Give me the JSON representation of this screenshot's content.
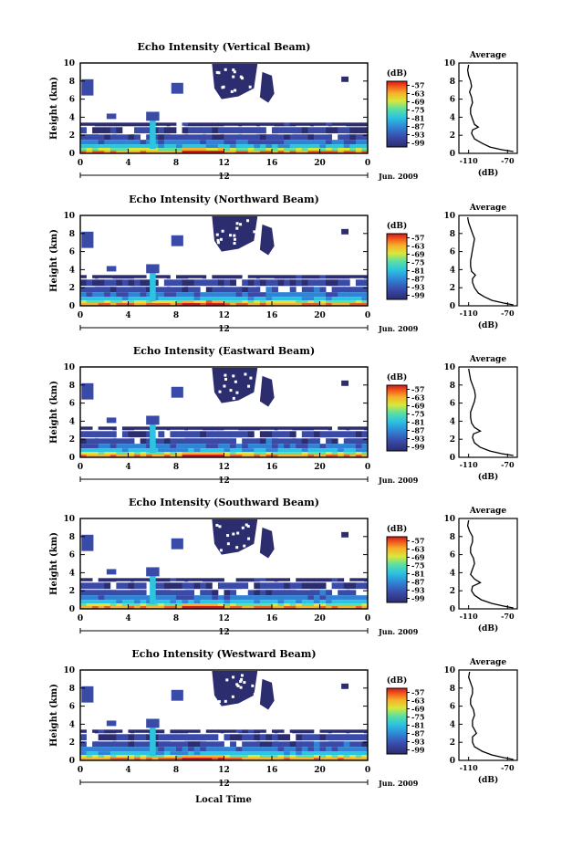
{
  "figure": {
    "xlabel": "Local Time",
    "ylabel": "Height (km)",
    "date_label": "Jun. 2009",
    "day_label": "12",
    "colorbar_unit": "(dB)",
    "colorbar_ticks": [
      "-57",
      "-63",
      "-69",
      "-75",
      "-81",
      "-87",
      "-93",
      "-99"
    ],
    "avg_title": "Average",
    "avg_xlabel": "(dB)",
    "avg_xticks": [
      "-110",
      "-70"
    ]
  },
  "chart_data": [
    {
      "type": "heatmap",
      "title": "Echo Intensity (Vertical Beam)",
      "x_label": "Local Time",
      "x_ticks": [
        "0",
        "4",
        "8",
        "12",
        "16",
        "20",
        "0"
      ],
      "xlim": [
        0,
        24
      ],
      "y_label": "Height (km)",
      "y_ticks": [
        "0",
        "2",
        "4",
        "6",
        "8",
        "10"
      ],
      "ylim": [
        0,
        10
      ],
      "color_scale_db": [
        -99,
        -57
      ],
      "average_profile": {
        "xlim": [
          -120,
          -60
        ],
        "points": [
          [
            -110,
            9.8
          ],
          [
            -111,
            9.2
          ],
          [
            -110,
            8.6
          ],
          [
            -108,
            8.0
          ],
          [
            -107,
            7.4
          ],
          [
            -109,
            6.8
          ],
          [
            -107,
            6.2
          ],
          [
            -106,
            5.6
          ],
          [
            -108,
            5.0
          ],
          [
            -108,
            4.4
          ],
          [
            -106,
            3.8
          ],
          [
            -104,
            3.2
          ],
          [
            -100,
            2.9
          ],
          [
            -106,
            2.6
          ],
          [
            -107,
            2.2
          ],
          [
            -104,
            1.6
          ],
          [
            -96,
            1.1
          ],
          [
            -88,
            0.7
          ],
          [
            -76,
            0.4
          ],
          [
            -64,
            0.2
          ]
        ]
      }
    },
    {
      "type": "heatmap",
      "title": "Echo Intensity (Northward Beam)",
      "x_label": "Local Time",
      "x_ticks": [
        "0",
        "4",
        "8",
        "12",
        "16",
        "20",
        "0"
      ],
      "xlim": [
        0,
        24
      ],
      "y_label": "Height (km)",
      "y_ticks": [
        "0",
        "2",
        "4",
        "6",
        "8",
        "10"
      ],
      "ylim": [
        0,
        10
      ],
      "color_scale_db": [
        -99,
        -57
      ],
      "average_profile": {
        "xlim": [
          -120,
          -60
        ],
        "points": [
          [
            -111,
            9.8
          ],
          [
            -110,
            9.2
          ],
          [
            -108,
            8.6
          ],
          [
            -106,
            8.0
          ],
          [
            -104,
            7.4
          ],
          [
            -105,
            6.8
          ],
          [
            -106,
            6.2
          ],
          [
            -107,
            5.6
          ],
          [
            -108,
            5.0
          ],
          [
            -108,
            4.4
          ],
          [
            -107,
            3.8
          ],
          [
            -103,
            3.4
          ],
          [
            -106,
            3.0
          ],
          [
            -106,
            2.6
          ],
          [
            -104,
            2.0
          ],
          [
            -100,
            1.4
          ],
          [
            -94,
            1.0
          ],
          [
            -86,
            0.6
          ],
          [
            -74,
            0.3
          ],
          [
            -64,
            0.1
          ]
        ]
      }
    },
    {
      "type": "heatmap",
      "title": "Echo Intensity (Eastward Beam)",
      "x_label": "Local Time",
      "x_ticks": [
        "0",
        "4",
        "8",
        "12",
        "16",
        "20",
        "0"
      ],
      "xlim": [
        0,
        24
      ],
      "y_label": "Height (km)",
      "y_ticks": [
        "0",
        "2",
        "4",
        "6",
        "8",
        "10"
      ],
      "ylim": [
        0,
        10
      ],
      "color_scale_db": [
        -99,
        -57
      ],
      "average_profile": {
        "xlim": [
          -120,
          -60
        ],
        "points": [
          [
            -110,
            9.8
          ],
          [
            -109,
            9.2
          ],
          [
            -108,
            8.6
          ],
          [
            -106,
            8.0
          ],
          [
            -104,
            7.4
          ],
          [
            -103,
            6.8
          ],
          [
            -104,
            6.2
          ],
          [
            -106,
            5.6
          ],
          [
            -108,
            5.0
          ],
          [
            -108,
            4.4
          ],
          [
            -107,
            3.8
          ],
          [
            -104,
            3.3
          ],
          [
            -98,
            2.9
          ],
          [
            -105,
            2.6
          ],
          [
            -106,
            2.2
          ],
          [
            -104,
            1.6
          ],
          [
            -98,
            1.1
          ],
          [
            -88,
            0.7
          ],
          [
            -76,
            0.4
          ],
          [
            -64,
            0.2
          ]
        ]
      }
    },
    {
      "type": "heatmap",
      "title": "Echo Intensity (Southward Beam)",
      "x_label": "Local Time",
      "x_ticks": [
        "0",
        "4",
        "8",
        "12",
        "16",
        "20",
        "0"
      ],
      "xlim": [
        0,
        24
      ],
      "y_label": "Height (km)",
      "y_ticks": [
        "0",
        "2",
        "4",
        "6",
        "8",
        "10"
      ],
      "ylim": [
        0,
        10
      ],
      "color_scale_db": [
        -99,
        -57
      ],
      "average_profile": {
        "xlim": [
          -120,
          -60
        ],
        "points": [
          [
            -110,
            9.8
          ],
          [
            -111,
            9.2
          ],
          [
            -109,
            8.6
          ],
          [
            -106,
            8.0
          ],
          [
            -106,
            7.4
          ],
          [
            -108,
            6.8
          ],
          [
            -108,
            6.2
          ],
          [
            -105,
            5.6
          ],
          [
            -104,
            5.0
          ],
          [
            -106,
            4.4
          ],
          [
            -108,
            3.8
          ],
          [
            -104,
            3.3
          ],
          [
            -98,
            2.9
          ],
          [
            -106,
            2.5
          ],
          [
            -107,
            2.0
          ],
          [
            -104,
            1.5
          ],
          [
            -97,
            1.0
          ],
          [
            -86,
            0.6
          ],
          [
            -74,
            0.3
          ],
          [
            -64,
            0.1
          ]
        ]
      }
    },
    {
      "type": "heatmap",
      "title": "Echo Intensity (Westward Beam)",
      "x_label": "Local Time",
      "x_ticks": [
        "0",
        "4",
        "8",
        "12",
        "16",
        "20",
        "0"
      ],
      "xlim": [
        0,
        24
      ],
      "y_label": "Height (km)",
      "y_ticks": [
        "0",
        "2",
        "4",
        "6",
        "8",
        "10"
      ],
      "ylim": [
        0,
        10
      ],
      "color_scale_db": [
        -99,
        -57
      ],
      "average_profile": {
        "xlim": [
          -120,
          -60
        ],
        "points": [
          [
            -109,
            9.8
          ],
          [
            -110,
            9.2
          ],
          [
            -108,
            8.6
          ],
          [
            -106,
            8.0
          ],
          [
            -106,
            7.4
          ],
          [
            -108,
            6.8
          ],
          [
            -108,
            6.2
          ],
          [
            -105,
            5.6
          ],
          [
            -104,
            5.0
          ],
          [
            -106,
            4.4
          ],
          [
            -106,
            3.8
          ],
          [
            -104,
            3.4
          ],
          [
            -102,
            3.0
          ],
          [
            -106,
            2.6
          ],
          [
            -106,
            2.0
          ],
          [
            -104,
            1.5
          ],
          [
            -96,
            1.0
          ],
          [
            -86,
            0.6
          ],
          [
            -74,
            0.3
          ],
          [
            -64,
            0.1
          ]
        ]
      }
    }
  ]
}
